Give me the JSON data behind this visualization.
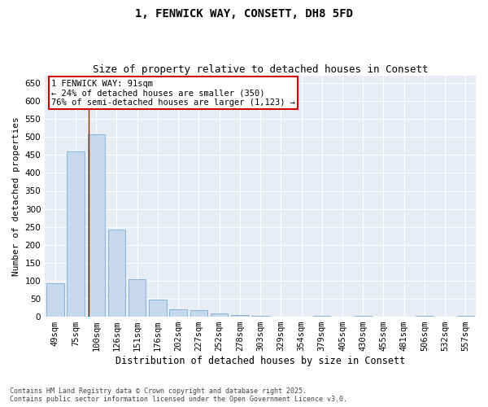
{
  "title": "1, FENWICK WAY, CONSETT, DH8 5FD",
  "subtitle": "Size of property relative to detached houses in Consett",
  "xlabel": "Distribution of detached houses by size in Consett",
  "ylabel": "Number of detached properties",
  "categories": [
    "49sqm",
    "75sqm",
    "100sqm",
    "126sqm",
    "151sqm",
    "176sqm",
    "202sqm",
    "227sqm",
    "252sqm",
    "278sqm",
    "303sqm",
    "329sqm",
    "354sqm",
    "379sqm",
    "405sqm",
    "430sqm",
    "455sqm",
    "481sqm",
    "506sqm",
    "532sqm",
    "557sqm"
  ],
  "values": [
    92,
    460,
    507,
    242,
    105,
    48,
    20,
    18,
    10,
    5,
    3,
    0,
    0,
    3,
    0,
    3,
    0,
    0,
    3,
    0,
    2
  ],
  "bar_color": "#c5d8ee",
  "bar_edge_color": "#7aadd4",
  "vline_x": 1.64,
  "vline_color": "#cc0000",
  "annotation_text": "1 FENWICK WAY: 91sqm\n← 24% of detached houses are smaller (350)\n76% of semi-detached houses are larger (1,123) →",
  "annotation_box_color": "#cc0000",
  "annotation_fill_color": "#ffffff",
  "ylim": [
    0,
    670
  ],
  "yticks": [
    0,
    50,
    100,
    150,
    200,
    250,
    300,
    350,
    400,
    450,
    500,
    550,
    600,
    650
  ],
  "background_color": "#e8edf5",
  "footer": "Contains HM Land Registry data © Crown copyright and database right 2025.\nContains public sector information licensed under the Open Government Licence v3.0.",
  "title_fontsize": 10,
  "subtitle_fontsize": 9,
  "xlabel_fontsize": 8.5,
  "ylabel_fontsize": 8,
  "tick_fontsize": 7.5,
  "annotation_fontsize": 7.5,
  "footer_fontsize": 6
}
